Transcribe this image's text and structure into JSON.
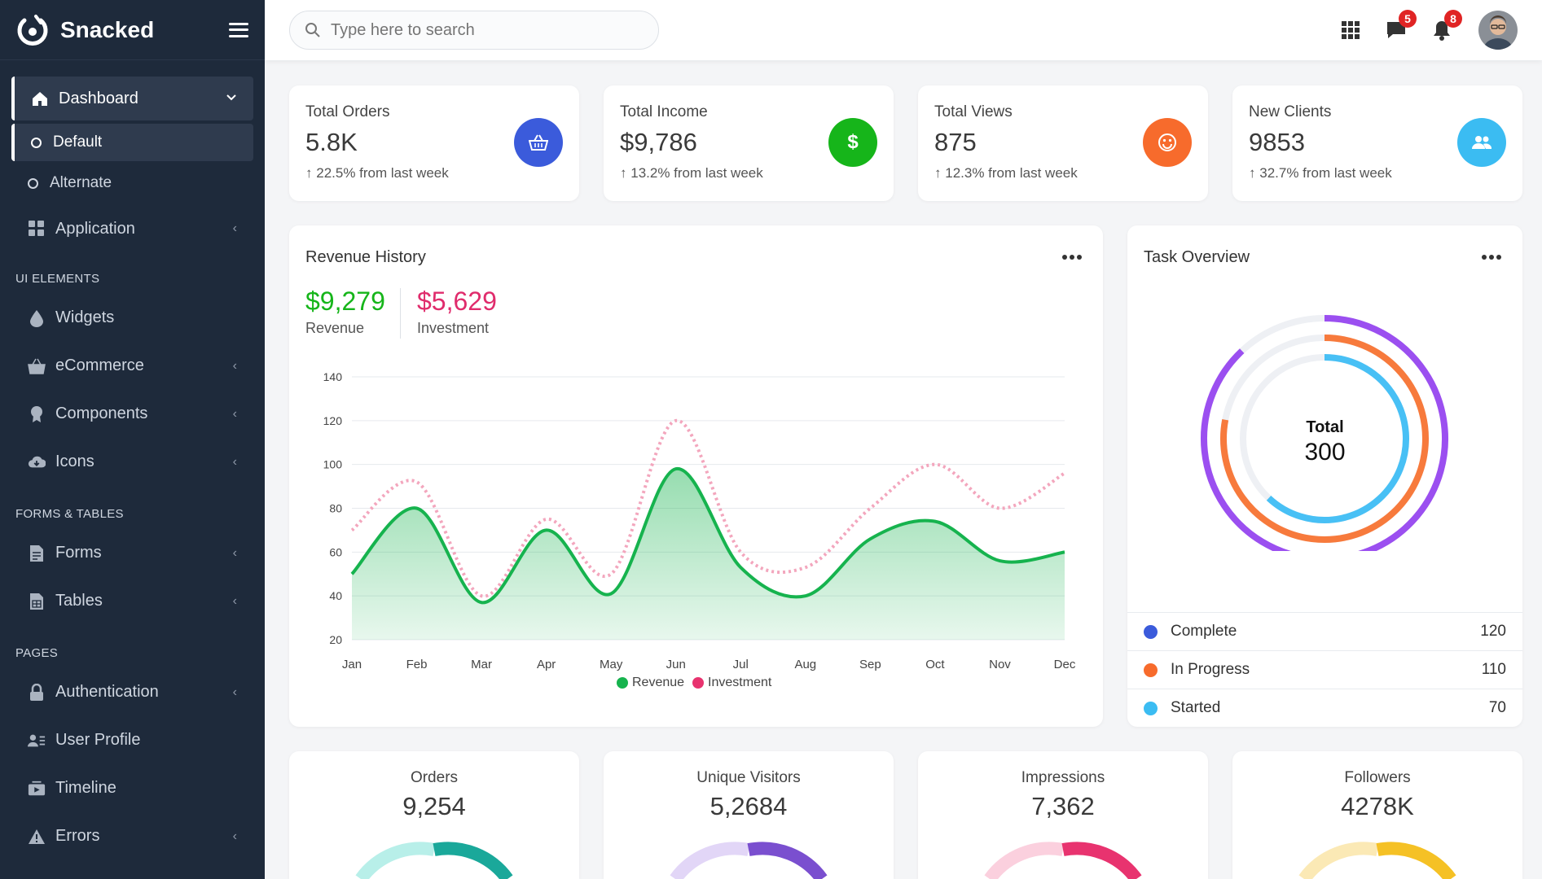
{
  "brand": {
    "name": "Snacked"
  },
  "sidebar": {
    "dashboard": "Dashboard",
    "sub": [
      "Default",
      "Alternate"
    ],
    "application": "Application",
    "sections": [
      "UI ELEMENTS",
      "FORMS & TABLES",
      "PAGES"
    ],
    "ui": [
      "Widgets",
      "eCommerce",
      "Components",
      "Icons"
    ],
    "forms": [
      "Forms",
      "Tables"
    ],
    "pages": [
      "Authentication",
      "User Profile",
      "Timeline",
      "Errors"
    ]
  },
  "search": {
    "placeholder": "Type here to search"
  },
  "top": {
    "messages": "5",
    "notifications": "8"
  },
  "stats": [
    {
      "label": "Total Orders",
      "value": "5.8K",
      "trend": "22.5% from last week",
      "color": "#3b5bdb",
      "icon": "basket-icon"
    },
    {
      "label": "Total Income",
      "value": "$9,786",
      "trend": "13.2% from last week",
      "color": "#16b51a",
      "icon": "dollar-icon"
    },
    {
      "label": "Total Views",
      "value": "875",
      "trend": "12.3% from last week",
      "color": "#f76b2c",
      "icon": "smile-icon"
    },
    {
      "label": "New Clients",
      "value": "9853",
      "trend": "32.7% from last week",
      "color": "#3bbcf2",
      "icon": "users-icon"
    }
  ],
  "revenue": {
    "title": "Revenue History",
    "revenue_value": "$9,279",
    "revenue_label": "Revenue",
    "investment_value": "$5,629",
    "investment_label": "Investment"
  },
  "chart_data": {
    "type": "area",
    "title": "",
    "categories": [
      "Jan",
      "Feb",
      "Mar",
      "Apr",
      "May",
      "Jun",
      "Jul",
      "Aug",
      "Sep",
      "Oct",
      "Nov",
      "Dec"
    ],
    "yticks": [
      20,
      40,
      60,
      80,
      100,
      120,
      140
    ],
    "ylim": [
      20,
      140
    ],
    "series": [
      {
        "name": "Revenue",
        "color": "#16b34e",
        "values": [
          50,
          80,
          37,
          70,
          41,
          98,
          53,
          40,
          66,
          74,
          56,
          60
        ]
      },
      {
        "name": "Investment",
        "color": "#f3a6bd",
        "values": [
          70,
          92,
          40,
          75,
          50,
          120,
          60,
          53,
          80,
          100,
          80,
          96
        ]
      }
    ],
    "legend": "bottom"
  },
  "task": {
    "title": "Task Overview",
    "total_label": "Total",
    "total_value": "300",
    "items": [
      {
        "label": "Complete",
        "value": "120",
        "color": "#3b5bdb"
      },
      {
        "label": "In Progress",
        "value": "110",
        "color": "#f76b2c"
      },
      {
        "label": "Started",
        "value": "70",
        "color": "#3bbcf2"
      }
    ]
  },
  "mini": [
    {
      "title": "Orders",
      "value": "9,254",
      "color": "#1aa89a",
      "light": "#b8efe9"
    },
    {
      "title": "Unique Visitors",
      "value": "5,2684",
      "color": "#7a4fcf",
      "light": "#e2d6f7"
    },
    {
      "title": "Impressions",
      "value": "7,362",
      "color": "#e8336f",
      "light": "#fbd0de"
    },
    {
      "title": "Followers",
      "value": "4278K",
      "color": "#f5c125",
      "light": "#fbe9b5"
    }
  ]
}
